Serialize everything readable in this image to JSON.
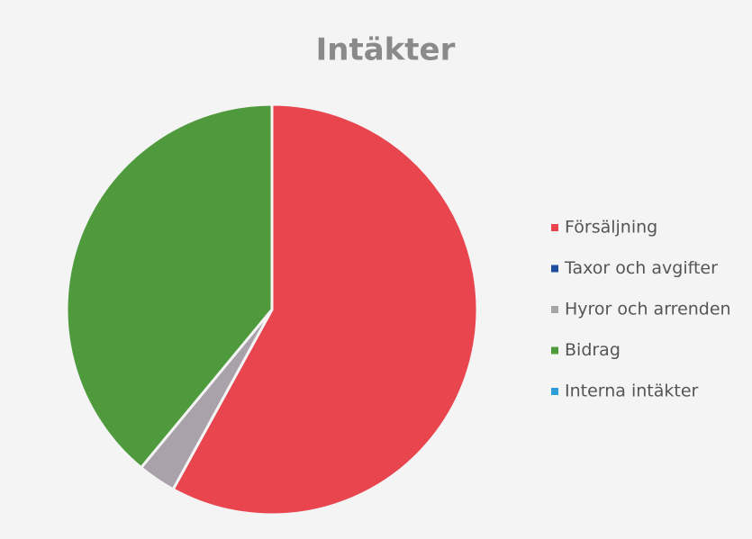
{
  "chart_data": {
    "type": "pie",
    "title": "Intäkter",
    "categories": [
      "Försäljning",
      "Taxor och avgifter",
      "Hyror och arrenden",
      "Bidrag",
      "Interna intäkter"
    ],
    "values": [
      58,
      0,
      3,
      39,
      0
    ],
    "colors": [
      "#e8454f",
      "#1f4e9c",
      "#aaa2ab",
      "#4f9a3c",
      "#2a9fd8"
    ],
    "legend": "right"
  }
}
